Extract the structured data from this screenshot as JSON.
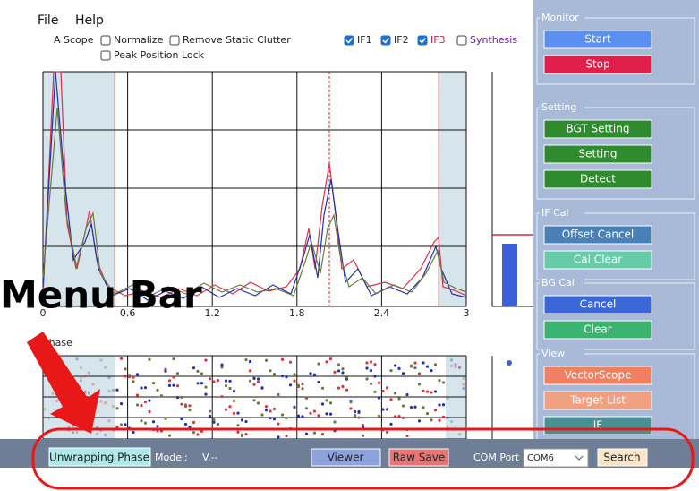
{
  "menu": {
    "items": [
      "File",
      "Help"
    ]
  },
  "scope": {
    "title": "A Scope",
    "checkboxes": [
      {
        "label": "Normalize",
        "checked": false
      },
      {
        "label": "Remove Static Clutter",
        "checked": false
      },
      {
        "label": "Peak Position Lock",
        "checked": false
      },
      {
        "label": "IF1",
        "checked": true
      },
      {
        "label": "IF2",
        "checked": true
      },
      {
        "label": "IF3",
        "checked": true
      },
      {
        "label": "Synthesis",
        "checked": false
      }
    ],
    "xlim": [
      0,
      3
    ],
    "xticks": [
      0,
      0.6,
      1.2,
      1.8,
      2.4,
      3
    ]
  },
  "phase": {
    "title": "Phase"
  },
  "annotation": "Menu Bar",
  "panel": {
    "groups": [
      {
        "title": "Monitor",
        "buttons": [
          "Start",
          "Stop"
        ]
      },
      {
        "title": "Setting",
        "buttons": [
          "BGT Setting",
          "Setting",
          "Detect"
        ]
      },
      {
        "title": "IF Cal",
        "buttons": [
          "Offset Cancel",
          "Cal Clear"
        ]
      },
      {
        "title": "BG Cal",
        "buttons": [
          "Cancel",
          "Clear"
        ]
      },
      {
        "title": "View",
        "buttons": [
          "VectorScope",
          "Target List",
          "IF"
        ]
      }
    ]
  },
  "bottom_bar": {
    "unwrap": "Unwrapping Phase",
    "model_label": "Model:",
    "model_value": "V.--",
    "viewer": "Viewer",
    "raw_save": "Raw Save",
    "com_label": "COM Port",
    "com_value": "COM6",
    "search": "Search"
  }
}
